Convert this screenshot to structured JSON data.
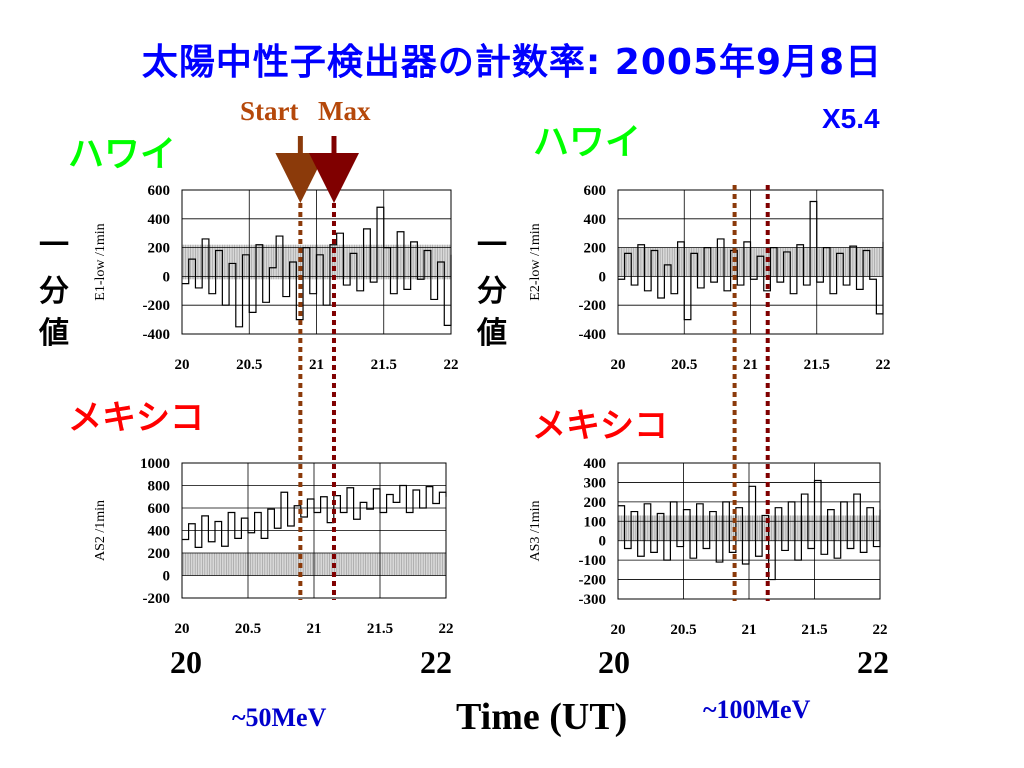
{
  "title": "太陽中性子検出器の計数率: 2005年9月8日",
  "flare_class": "X5.4",
  "markers": {
    "start_label": "Start",
    "max_label": "Max",
    "start_time": 20.88,
    "max_time": 21.13,
    "start_color": "#8b3a0a",
    "max_color": "#800000"
  },
  "vertical_label_chars": [
    "一",
    "分",
    "値"
  ],
  "sites": {
    "left_top": "ハワイ",
    "right_top": "ハワイ",
    "left_bottom": "メキシコ",
    "right_bottom": "メキシコ"
  },
  "bottom": {
    "left_start": "20",
    "left_end": "22",
    "right_start": "20",
    "right_end": "22",
    "left_energy": "~50MeV",
    "right_energy": "~100MeV",
    "time_label": "Time (UT)"
  },
  "colors": {
    "title": "#0000ff",
    "flare_class": "#0000ff",
    "hawaii": "#00ff00",
    "mexico": "#ff0000",
    "energy": "#0000cc",
    "marker_text": "#b5480a"
  },
  "chart_data": [
    {
      "type": "line",
      "ylabel": "E1-low /1min",
      "xlim": [
        20,
        22
      ],
      "ylim": [
        -400,
        600
      ],
      "x_ticks": [
        "20",
        "20.5",
        "21",
        "21.5",
        "22"
      ],
      "y_ticks": [
        "600",
        "400",
        "200",
        "0",
        "-200",
        "-400"
      ],
      "background_band": [
        -20,
        220
      ],
      "series": [
        {
          "x": [
            20.0,
            20.05,
            20.1,
            20.15,
            20.2,
            20.25,
            20.3,
            20.35,
            20.4,
            20.45,
            20.5,
            20.55,
            20.6,
            20.65,
            20.7,
            20.75,
            20.8,
            20.85,
            20.9,
            20.95,
            21.0,
            21.05,
            21.1,
            21.15,
            21.2,
            21.25,
            21.3,
            21.35,
            21.4,
            21.45,
            21.5,
            21.55,
            21.6,
            21.65,
            21.7,
            21.75,
            21.8,
            21.85,
            21.9,
            21.95,
            22.0
          ],
          "y": [
            -50,
            120,
            -80,
            260,
            -120,
            180,
            -200,
            90,
            -350,
            150,
            -250,
            220,
            -180,
            60,
            280,
            -140,
            100,
            -300,
            200,
            -120,
            150,
            -200,
            220,
            300,
            -60,
            160,
            -100,
            330,
            -40,
            480,
            200,
            -120,
            310,
            -90,
            240,
            -20,
            180,
            -160,
            100,
            -340,
            150
          ]
        }
      ]
    },
    {
      "type": "line",
      "ylabel": "E2-low /1min",
      "xlim": [
        20,
        22
      ],
      "ylim": [
        -400,
        600
      ],
      "x_ticks": [
        "20",
        "20.5",
        "21",
        "21.5",
        "22"
      ],
      "y_ticks": [
        "600",
        "400",
        "200",
        "0",
        "-200",
        "-400"
      ],
      "background_band": [
        0,
        200
      ],
      "series": [
        {
          "x": [
            20.0,
            20.05,
            20.1,
            20.15,
            20.2,
            20.25,
            20.3,
            20.35,
            20.4,
            20.45,
            20.5,
            20.55,
            20.6,
            20.65,
            20.7,
            20.75,
            20.8,
            20.85,
            20.9,
            20.95,
            21.0,
            21.05,
            21.1,
            21.15,
            21.2,
            21.25,
            21.3,
            21.35,
            21.4,
            21.45,
            21.5,
            21.55,
            21.6,
            21.65,
            21.7,
            21.75,
            21.8,
            21.85,
            21.9,
            21.95,
            22.0
          ],
          "y": [
            -20,
            160,
            -60,
            220,
            -100,
            180,
            -150,
            80,
            -120,
            240,
            -300,
            160,
            -80,
            200,
            -40,
            260,
            -100,
            180,
            -60,
            240,
            -20,
            140,
            -100,
            200,
            -40,
            170,
            -120,
            220,
            -60,
            520,
            -40,
            200,
            -120,
            160,
            -60,
            210,
            -90,
            180,
            -20,
            -260,
            240
          ]
        }
      ]
    },
    {
      "type": "line",
      "ylabel": "AS2 /1min",
      "xlim": [
        20,
        22
      ],
      "ylim": [
        -200,
        1000
      ],
      "x_ticks": [
        "20",
        "20.5",
        "21",
        "21.5",
        "22"
      ],
      "y_ticks": [
        "1000",
        "800",
        "600",
        "400",
        "200",
        "0",
        "-200"
      ],
      "background_band": [
        0,
        200
      ],
      "series": [
        {
          "x": [
            20.0,
            20.05,
            20.1,
            20.15,
            20.2,
            20.25,
            20.3,
            20.35,
            20.4,
            20.45,
            20.5,
            20.55,
            20.6,
            20.65,
            20.7,
            20.75,
            20.8,
            20.85,
            20.9,
            20.95,
            21.0,
            21.05,
            21.1,
            21.15,
            21.2,
            21.25,
            21.3,
            21.35,
            21.4,
            21.45,
            21.5,
            21.55,
            21.6,
            21.65,
            21.7,
            21.75,
            21.8,
            21.85,
            21.9,
            21.95,
            22.0
          ],
          "y": [
            320,
            460,
            250,
            530,
            300,
            480,
            260,
            560,
            330,
            510,
            380,
            560,
            330,
            590,
            420,
            740,
            440,
            620,
            520,
            680,
            560,
            700,
            470,
            710,
            560,
            780,
            500,
            650,
            590,
            770,
            560,
            720,
            650,
            800,
            560,
            760,
            600,
            790,
            640,
            740,
            700
          ]
        }
      ]
    },
    {
      "type": "line",
      "ylabel": "AS3 /1min",
      "xlim": [
        20,
        22
      ],
      "ylim": [
        -300,
        400
      ],
      "x_ticks": [
        "20",
        "20.5",
        "21",
        "21.5",
        "22"
      ],
      "y_ticks": [
        "400",
        "300",
        "200",
        "100",
        "0",
        "-100",
        "-200",
        "-300"
      ],
      "background_band": [
        0,
        130
      ],
      "series": [
        {
          "x": [
            20.0,
            20.05,
            20.1,
            20.15,
            20.2,
            20.25,
            20.3,
            20.35,
            20.4,
            20.45,
            20.5,
            20.55,
            20.6,
            20.65,
            20.7,
            20.75,
            20.8,
            20.85,
            20.9,
            20.95,
            21.0,
            21.05,
            21.1,
            21.15,
            21.2,
            21.25,
            21.3,
            21.35,
            21.4,
            21.45,
            21.5,
            21.55,
            21.6,
            21.65,
            21.7,
            21.75,
            21.8,
            21.85,
            21.9,
            21.95,
            22.0
          ],
          "y": [
            180,
            -40,
            150,
            -80,
            190,
            -60,
            140,
            -100,
            200,
            -30,
            160,
            -90,
            190,
            -40,
            150,
            -110,
            200,
            -60,
            170,
            -120,
            280,
            -80,
            130,
            -200,
            170,
            -50,
            200,
            -100,
            240,
            -40,
            310,
            -70,
            160,
            -90,
            200,
            -40,
            240,
            -60,
            170,
            -30,
            160
          ]
        }
      ]
    }
  ]
}
